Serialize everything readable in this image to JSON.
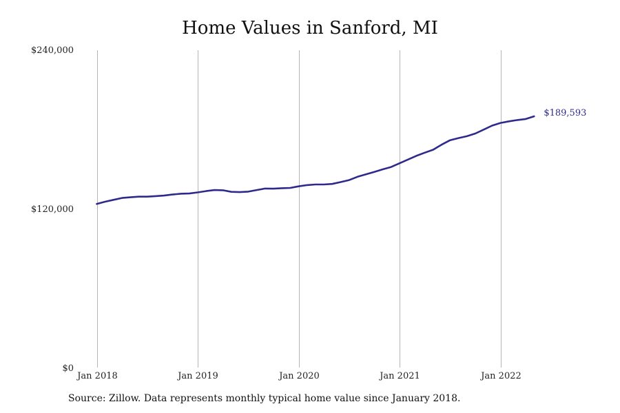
{
  "chart_data": {
    "type": "line",
    "title": "Home Values in Sanford, MI",
    "xlabel": "",
    "ylabel": "",
    "ylim": [
      0,
      240000
    ],
    "xlim": [
      "2018-01",
      "2022-12"
    ],
    "y_ticks": [
      {
        "value": 0,
        "label": "$0"
      },
      {
        "value": 120000,
        "label": "$120,000"
      },
      {
        "value": 240000,
        "label": "$240,000"
      }
    ],
    "x_ticks": [
      {
        "date": "2018-01",
        "label": "Jan 2018"
      },
      {
        "date": "2019-01",
        "label": "Jan 2019"
      },
      {
        "date": "2020-01",
        "label": "Jan 2020"
      },
      {
        "date": "2021-01",
        "label": "Jan 2021"
      },
      {
        "date": "2022-01",
        "label": "Jan 2022"
      }
    ],
    "grid": "vertical",
    "series": [
      {
        "color": "#2e2a8c",
        "end_label": "$189,593",
        "x": [
          "2018-01",
          "2018-02",
          "2018-03",
          "2018-04",
          "2018-05",
          "2018-06",
          "2018-07",
          "2018-08",
          "2018-09",
          "2018-10",
          "2018-11",
          "2018-12",
          "2019-01",
          "2019-02",
          "2019-03",
          "2019-04",
          "2019-05",
          "2019-06",
          "2019-07",
          "2019-08",
          "2019-09",
          "2019-10",
          "2019-11",
          "2019-12",
          "2020-01",
          "2020-02",
          "2020-03",
          "2020-04",
          "2020-05",
          "2020-06",
          "2020-07",
          "2020-08",
          "2020-09",
          "2020-10",
          "2020-11",
          "2020-12",
          "2021-01",
          "2021-02",
          "2021-03",
          "2021-04",
          "2021-05",
          "2021-06",
          "2021-07",
          "2021-08",
          "2021-09",
          "2021-10",
          "2021-11",
          "2021-12",
          "2022-01",
          "2022-02",
          "2022-03",
          "2022-04",
          "2022-05"
        ],
        "values": [
          123500,
          125200,
          126600,
          128000,
          128500,
          129000,
          129000,
          129400,
          129800,
          130600,
          131200,
          131400,
          132200,
          133200,
          134000,
          133800,
          132600,
          132400,
          132800,
          134000,
          135100,
          135000,
          135400,
          135600,
          136800,
          137700,
          138200,
          138200,
          138600,
          140000,
          141500,
          144000,
          145800,
          147700,
          149600,
          151400,
          154200,
          157000,
          159800,
          162200,
          164400,
          168200,
          171600,
          173200,
          174600,
          176600,
          179600,
          182600,
          184600,
          185800,
          186800,
          187600,
          189593
        ]
      }
    ]
  },
  "source_note": "Source: Zillow. Data represents monthly typical home value since January 2018.",
  "colors": {
    "line": "#2e2a8c",
    "grid": "#b5b5b5"
  }
}
